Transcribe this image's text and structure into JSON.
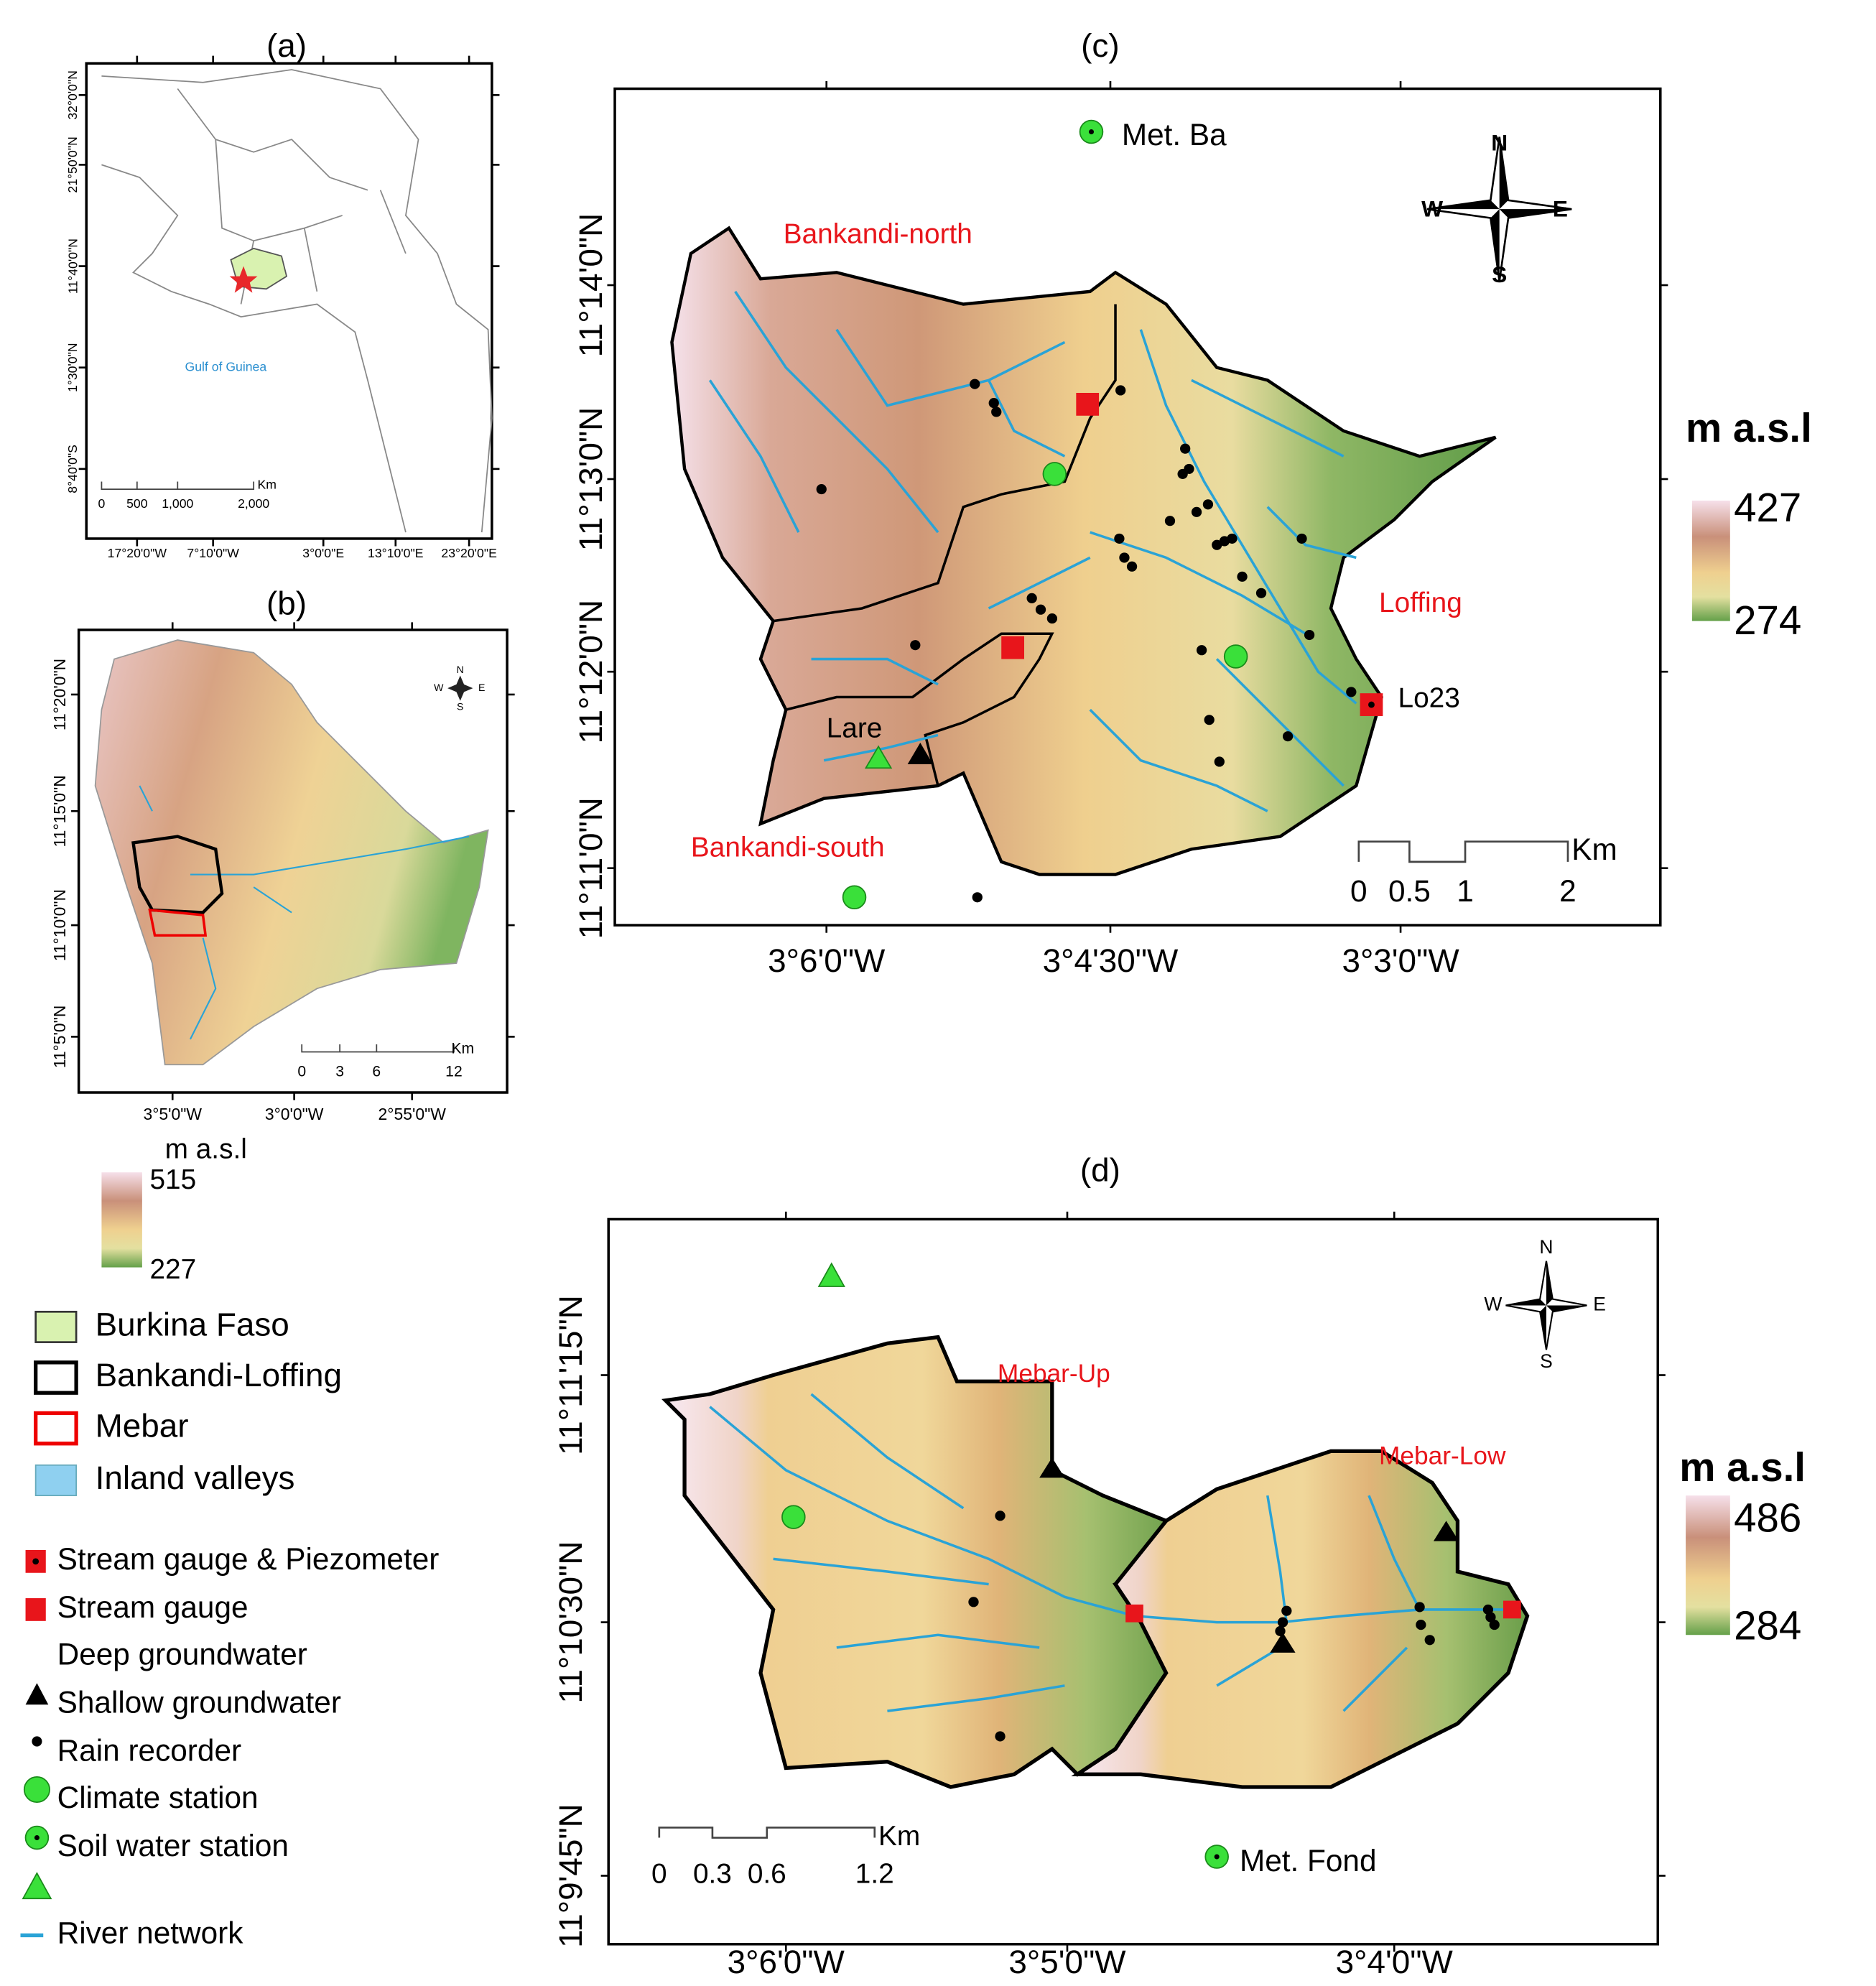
{
  "panels": {
    "a": {
      "title": "(a)",
      "lat_labels": [
        "32°0'0\"N",
        "21°50'0\"N",
        "11°40'0\"N",
        "1°30'0\"N",
        "8°40'0\"S"
      ],
      "lon_labels": [
        "17°20'0\"W",
        "7°10'0\"W",
        "3°0'0\"E",
        "13°10'0\"E",
        "23°20'0\"E"
      ],
      "sea_label": "Gulf of Guinea",
      "scale": {
        "ticks": [
          "0",
          "500",
          "1,000",
          "2,000"
        ],
        "unit": "Km"
      }
    },
    "b": {
      "title": "(b)",
      "lat_labels": [
        "11°20'0\"N",
        "11°15'0\"N",
        "11°10'0\"N",
        "11°5'0\"N"
      ],
      "lon_labels": [
        "3°5'0\"W",
        "3°0'0\"W",
        "2°55'0\"W"
      ],
      "scale": {
        "ticks": [
          "0",
          "3",
          "6",
          "12"
        ],
        "unit": "Km"
      },
      "compass": [
        "N",
        "W",
        "E",
        "S"
      ],
      "elevation": {
        "title": "m a.s.l",
        "max": "515",
        "min": "227"
      }
    },
    "c": {
      "title": "(c)",
      "lat_labels": [
        "11°14'0\"N",
        "11°13'0\"N",
        "11°12'0\"N",
        "11°11'0\"N"
      ],
      "lon_labels": [
        "3°6'0\"W",
        "3°4'30\"W",
        "3°3'0\"W"
      ],
      "labels": [
        "Met. Ba",
        "Bankandi-north",
        "Loffing",
        "Lo23",
        "Lare",
        "Bankandi-south"
      ],
      "scale": {
        "ticks": [
          "0",
          "0.5",
          "1",
          "2"
        ],
        "unit": "Km"
      },
      "compass": [
        "N",
        "W",
        "E",
        "S"
      ],
      "elevation": {
        "title": "m  a.s.l",
        "max": "427",
        "min": "274"
      }
    },
    "d": {
      "title": "(d)",
      "lat_labels": [
        "11°11'15\"N",
        "11°10'30\"N",
        "11°9'45\"N"
      ],
      "lon_labels": [
        "3°6'0\"W",
        "3°5'0\"W",
        "3°4'0\"W"
      ],
      "labels": [
        "Mebar-Up",
        "Mebar-Low",
        "Met. Fond"
      ],
      "scale": {
        "ticks": [
          "0",
          "0.3",
          "0.6",
          "1.2"
        ],
        "unit": "Km"
      },
      "compass": [
        "N",
        "W",
        "E",
        "S"
      ],
      "elevation": {
        "title": "m  a.s.l",
        "max": "486",
        "min": "284"
      }
    }
  },
  "legend": {
    "areas": [
      "Burkina Faso",
      "Bankandi-Loffing",
      "Mebar",
      "Inland valleys"
    ],
    "symbols": [
      "Stream gauge & Piezometer",
      "Stream gauge",
      "Deep groundwater",
      "Shallow groundwater",
      "Rain recorder",
      "Climate station",
      "Soil water station",
      "River network"
    ]
  }
}
